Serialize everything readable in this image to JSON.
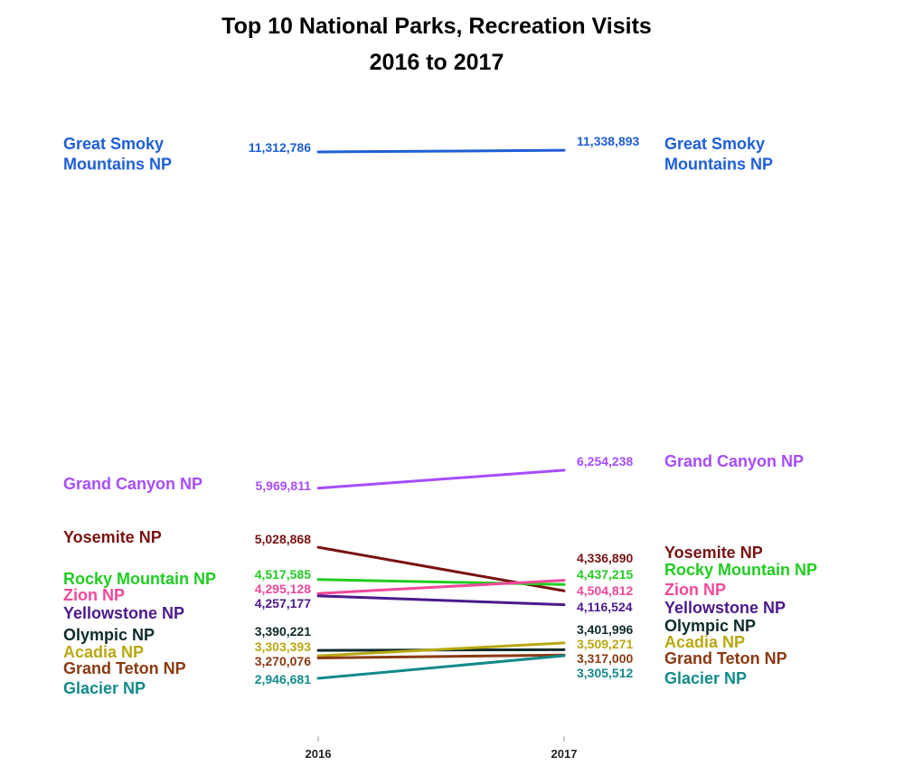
{
  "chart_data": {
    "type": "line",
    "title": "Top 10 National Parks, Recreation Visits",
    "subtitle": "2016 to 2017",
    "x": [
      "2016",
      "2017"
    ],
    "series": [
      {
        "name": "Great Smoky Mountains NP",
        "values": [
          11312786,
          11338893
        ],
        "value_labels": [
          "11,312,786",
          "11,338,893"
        ],
        "color": "#1f5fd6"
      },
      {
        "name": "Grand Canyon NP",
        "values": [
          5969811,
          6254238
        ],
        "value_labels": [
          "5,969,811",
          "6,254,238"
        ],
        "color": "#a64dff"
      },
      {
        "name": "Yosemite NP",
        "values": [
          5028868,
          4336890
        ],
        "value_labels": [
          "5,028,868",
          "4,336,890"
        ],
        "color": "#7a1212"
      },
      {
        "name": "Rocky Mountain NP",
        "values": [
          4517585,
          4437215
        ],
        "value_labels": [
          "4,517,585",
          "4,437,215"
        ],
        "color": "#22cc22"
      },
      {
        "name": "Zion NP",
        "values": [
          4295128,
          4504812
        ],
        "value_labels": [
          "4,295,128",
          "4,504,812"
        ],
        "color": "#f0489a"
      },
      {
        "name": "Yellowstone NP",
        "values": [
          4257177,
          4116524
        ],
        "value_labels": [
          "4,257,177",
          "4,116,524"
        ],
        "color": "#4b1a8c"
      },
      {
        "name": "Olympic NP",
        "values": [
          3390221,
          3401996
        ],
        "value_labels": [
          "3,390,221",
          "3,401,996"
        ],
        "color": "#0f2b2b"
      },
      {
        "name": "Acadia NP",
        "values": [
          3303393,
          3509271
        ],
        "value_labels": [
          "3,303,393",
          "3,509,271"
        ],
        "color": "#b8a812"
      },
      {
        "name": "Grand Teton NP",
        "values": [
          3270076,
          3317000
        ],
        "value_labels": [
          "3,270,076",
          "3,317,000"
        ],
        "color": "#8a3a12"
      },
      {
        "name": "Glacier NP",
        "values": [
          2946681,
          3305512
        ],
        "value_labels": [
          "2,946,681",
          "3,305,512"
        ],
        "color": "#128a8a"
      }
    ],
    "grid": false,
    "legend": "none",
    "ylim": [
      2600000,
      11600000
    ]
  }
}
